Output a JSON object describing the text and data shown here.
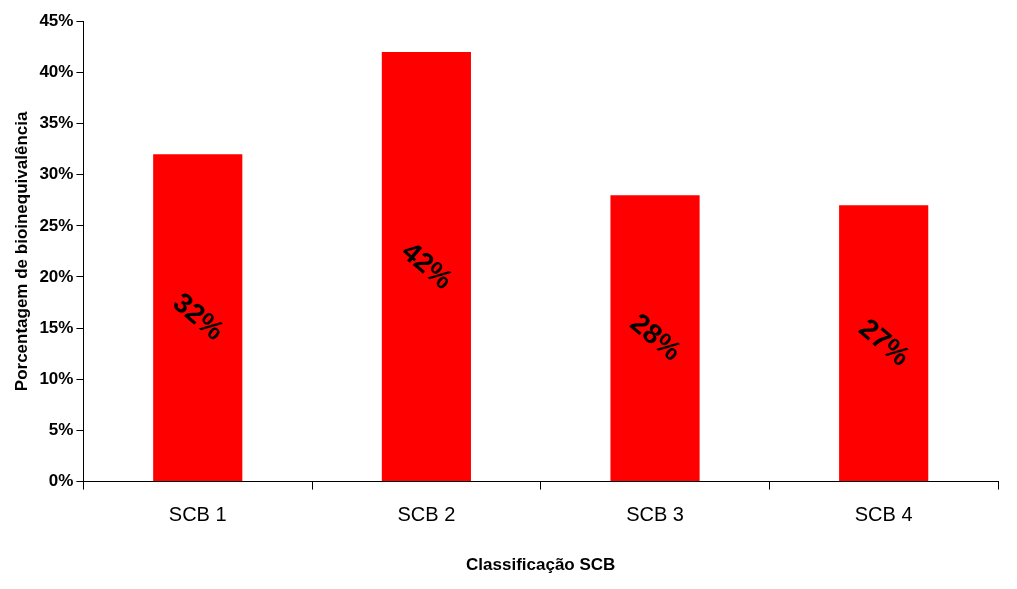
{
  "chart_data": {
    "type": "bar",
    "xlabel": "Classificação SCB",
    "ylabel": "Porcentagem de bioinequivalência",
    "categories": [
      "SCB 1",
      "SCB 2",
      "SCB 3",
      "SCB 4"
    ],
    "values": [
      32,
      42,
      28,
      27
    ],
    "value_labels": [
      "32%",
      "42%",
      "28%",
      "27%"
    ],
    "color": "#ff0000",
    "ylim": [
      0,
      45
    ],
    "yticks": [
      {
        "value": 0,
        "label": "0%"
      },
      {
        "value": 5,
        "label": "5%"
      },
      {
        "value": 10,
        "label": "10%"
      },
      {
        "value": 15,
        "label": "15%"
      },
      {
        "value": 20,
        "label": "20%"
      },
      {
        "value": 25,
        "label": "25%"
      },
      {
        "value": 30,
        "label": "30%"
      },
      {
        "value": 35,
        "label": "35%"
      },
      {
        "value": 40,
        "label": "40%"
      },
      {
        "value": 45,
        "label": "45%"
      }
    ],
    "grid": false,
    "legend": false
  }
}
